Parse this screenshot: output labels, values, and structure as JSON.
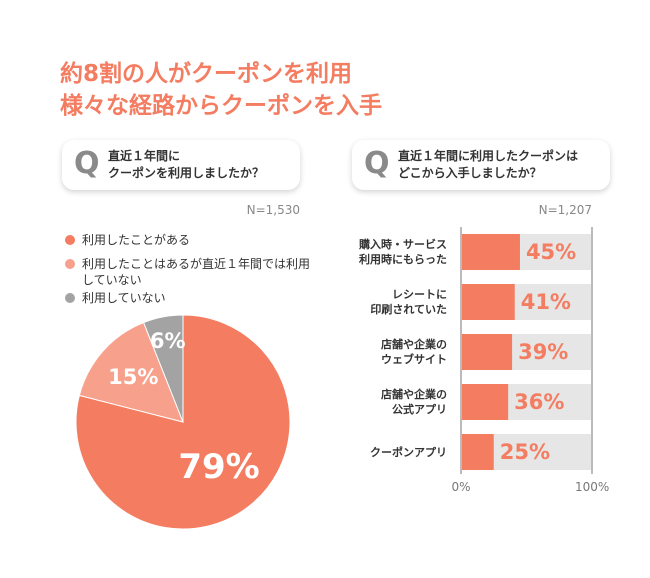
{
  "headline": [
    "約8割の人がクーポンを利用",
    "様々な経路からクーポンを入手"
  ],
  "chart_data": [
    {
      "type": "pie",
      "question_mark": "Q",
      "question": "直近１年間に\nクーポンを利用しましたか？",
      "note": "N=1,530",
      "categories": [
        "利用したことがある",
        "利用したことはあるが直近１年間では利用していない",
        "利用していない"
      ],
      "values": [
        79,
        15,
        6
      ],
      "value_labels": [
        "79%",
        "15%",
        "6%"
      ],
      "colors": [
        "#f47c60",
        "#f7a08c",
        "#a3a3a3"
      ]
    },
    {
      "type": "hbar",
      "question_mark": "Q",
      "question": "直近１年間に利用したクーポンは\nどこから入手しましたか？",
      "note": "N=1,207",
      "categories": [
        "購入時・サービス\n利用時にもらった",
        "レシートに\n印刷されていた",
        "店舗や企業の\nウェブサイト",
        "店舗や企業の\n公式アプリ",
        "クーポンアプリ"
      ],
      "values": [
        45,
        41,
        39,
        36,
        25
      ],
      "value_labels": [
        "45%",
        "41%",
        "39%",
        "36%",
        "25%"
      ],
      "color": "#f47c60",
      "xlim": [
        0,
        100
      ],
      "xticks": [
        {
          "value": 0,
          "label": "0%"
        },
        {
          "value": 100,
          "label": "100%"
        }
      ]
    }
  ]
}
